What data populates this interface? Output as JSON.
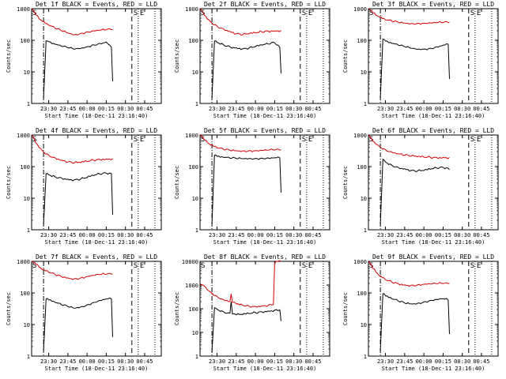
{
  "chart_data": [
    {
      "type": "line",
      "title": "Det 1f BLACK = Events, RED = LLD",
      "xlabel": "Start Time (18-Dec-11 23:16:40)",
      "ylabel": "Counts/sec",
      "ylim": [
        1,
        1000
      ],
      "yticks": [
        "1",
        "10",
        "100",
        "1000"
      ],
      "xticks": [
        "23:30",
        "23:45",
        "00:00",
        "00:15",
        "00:30",
        "00:45"
      ],
      "yscale": "log",
      "markers": {
        "S": "00:35",
        "E": "00:40"
      },
      "series": [
        {
          "color": "#d40000",
          "x": [
            "23:17",
            "23:20",
            "23:25",
            "23:30",
            "23:35",
            "23:40",
            "23:45",
            "23:50",
            "23:55",
            "00:00",
            "00:05",
            "00:10",
            "00:15",
            "00:20"
          ],
          "values": [
            1000,
            640,
            400,
            300,
            240,
            200,
            170,
            150,
            165,
            185,
            200,
            210,
            215,
            220
          ]
        },
        {
          "color": "#000000",
          "x": [
            "23:26",
            "23:28",
            "23:30",
            "23:35",
            "23:40",
            "23:45",
            "23:50",
            "23:55",
            "00:00",
            "00:05",
            "00:10",
            "00:15",
            "00:19",
            "00:20"
          ],
          "values": [
            1.5,
            95,
            90,
            75,
            65,
            58,
            52,
            55,
            62,
            72,
            80,
            88,
            60,
            5
          ]
        }
      ]
    },
    {
      "type": "line",
      "title": "Det 2f BLACK = Events, RED = LLD",
      "xlabel": "Start Time (18-Dec-11 23:16:40)",
      "ylabel": "Counts/sec",
      "ylim": [
        1,
        1000
      ],
      "yticks": [
        "1",
        "10",
        "100",
        "1000"
      ],
      "xticks": [
        "23:30",
        "23:45",
        "00:00",
        "00:15",
        "00:30",
        "00:45"
      ],
      "yscale": "log",
      "markers": {
        "S": "00:35",
        "E": "00:40"
      },
      "series": [
        {
          "color": "#d40000",
          "x": [
            "23:17",
            "23:20",
            "23:25",
            "23:30",
            "23:35",
            "23:40",
            "23:45",
            "23:50",
            "23:55",
            "00:00",
            "00:05",
            "00:10",
            "00:15",
            "00:20"
          ],
          "values": [
            1000,
            620,
            380,
            280,
            230,
            190,
            160,
            150,
            160,
            170,
            185,
            195,
            200,
            205
          ]
        },
        {
          "color": "#000000",
          "x": [
            "23:26",
            "23:28",
            "23:30",
            "23:35",
            "23:40",
            "23:45",
            "23:50",
            "23:55",
            "00:00",
            "00:05",
            "00:10",
            "00:15",
            "00:19",
            "00:20"
          ],
          "values": [
            1.5,
            95,
            85,
            72,
            63,
            58,
            54,
            57,
            63,
            70,
            76,
            84,
            60,
            9
          ]
        }
      ]
    },
    {
      "type": "line",
      "title": "Det 3f BLACK = Events, RED = LLD",
      "xlabel": "Start Time (18-Dec-11 23:16:40)",
      "ylabel": "Counts/sec",
      "ylim": [
        1,
        1000
      ],
      "yticks": [
        "1",
        "10",
        "100",
        "1000"
      ],
      "xticks": [
        "23:30",
        "23:45",
        "00:00",
        "00:15",
        "00:30",
        "00:45"
      ],
      "yscale": "log",
      "markers": {
        "S": "00:35",
        "E": "00:40"
      },
      "series": [
        {
          "color": "#d40000",
          "x": [
            "23:17",
            "23:20",
            "23:25",
            "23:30",
            "23:35",
            "23:40",
            "23:45",
            "23:50",
            "23:55",
            "00:00",
            "00:05",
            "00:10",
            "00:15",
            "00:20"
          ],
          "values": [
            1000,
            750,
            550,
            440,
            400,
            370,
            350,
            340,
            345,
            350,
            355,
            360,
            365,
            370
          ]
        },
        {
          "color": "#000000",
          "x": [
            "23:26",
            "23:28",
            "23:30",
            "23:35",
            "23:40",
            "23:45",
            "23:50",
            "23:55",
            "00:00",
            "00:05",
            "00:10",
            "00:15",
            "00:19",
            "00:20"
          ],
          "values": [
            1.5,
            110,
            95,
            80,
            70,
            62,
            56,
            52,
            53,
            56,
            62,
            70,
            75,
            6
          ]
        }
      ]
    },
    {
      "type": "line",
      "title": "Det 4f BLACK = Events, RED = LLD",
      "xlabel": "Start Time (18-Dec-11 23:16:40)",
      "ylabel": "Counts/sec",
      "ylim": [
        1,
        1000
      ],
      "yticks": [
        "1",
        "10",
        "100",
        "1000"
      ],
      "xticks": [
        "23:30",
        "23:45",
        "00:00",
        "00:15",
        "00:30",
        "00:45"
      ],
      "yscale": "log",
      "markers": {
        "S": "00:35",
        "E": "00:40"
      },
      "series": [
        {
          "color": "#d40000",
          "x": [
            "23:17",
            "23:20",
            "23:25",
            "23:30",
            "23:35",
            "23:40",
            "23:45",
            "23:50",
            "23:55",
            "00:00",
            "00:05",
            "00:10",
            "00:15",
            "00:20"
          ],
          "values": [
            1000,
            560,
            320,
            230,
            190,
            160,
            140,
            130,
            135,
            145,
            160,
            170,
            175,
            180
          ]
        },
        {
          "color": "#000000",
          "x": [
            "23:26",
            "23:28",
            "23:30",
            "23:35",
            "23:40",
            "23:45",
            "23:50",
            "23:55",
            "00:00",
            "00:05",
            "00:10",
            "00:15",
            "00:19",
            "00:20"
          ],
          "values": [
            1.5,
            60,
            55,
            48,
            44,
            40,
            38,
            40,
            45,
            52,
            58,
            62,
            60,
            3
          ]
        }
      ]
    },
    {
      "type": "line",
      "title": "Det 5f BLACK = Events, RED = LLD",
      "xlabel": "Start Time (18-Dec-11 23:16:40)",
      "ylabel": "Counts/sec",
      "ylim": [
        1,
        1000
      ],
      "yticks": [
        "1",
        "10",
        "100",
        "1000"
      ],
      "xticks": [
        "23:30",
        "23:45",
        "00:00",
        "00:15",
        "00:30",
        "00:45"
      ],
      "yscale": "log",
      "markers": {
        "S": "00:35",
        "E": "00:40"
      },
      "series": [
        {
          "color": "#d40000",
          "x": [
            "23:17",
            "23:20",
            "23:25",
            "23:30",
            "23:35",
            "23:40",
            "23:45",
            "23:50",
            "23:55",
            "00:00",
            "00:05",
            "00:10",
            "00:15",
            "00:20"
          ],
          "values": [
            1000,
            700,
            480,
            390,
            350,
            330,
            320,
            315,
            320,
            320,
            325,
            330,
            335,
            335
          ]
        },
        {
          "color": "#000000",
          "x": [
            "23:26",
            "23:28",
            "23:30",
            "23:35",
            "23:40",
            "23:45",
            "23:50",
            "23:55",
            "00:00",
            "00:05",
            "00:10",
            "00:15",
            "00:19",
            "00:20"
          ],
          "values": [
            1.5,
            230,
            210,
            195,
            185,
            180,
            178,
            180,
            182,
            185,
            188,
            190,
            190,
            15
          ]
        }
      ]
    },
    {
      "type": "line",
      "title": "Det 6f BLACK = Events, RED = LLD",
      "xlabel": "Start Time (18-Dec-11 23:16:40)",
      "ylabel": "Counts/sec",
      "ylim": [
        1,
        1000
      ],
      "yticks": [
        "1",
        "10",
        "100",
        "1000"
      ],
      "xticks": [
        "23:30",
        "23:45",
        "00:00",
        "00:15",
        "00:30",
        "00:45"
      ],
      "yscale": "log",
      "markers": {
        "S": "00:35",
        "E": "00:40"
      },
      "series": [
        {
          "color": "#d40000",
          "x": [
            "23:17",
            "23:20",
            "23:25",
            "23:30",
            "23:35",
            "23:40",
            "23:45",
            "23:50",
            "23:55",
            "00:00",
            "00:05",
            "00:10",
            "00:15",
            "00:20"
          ],
          "values": [
            1000,
            650,
            450,
            340,
            290,
            255,
            230,
            215,
            205,
            200,
            198,
            195,
            195,
            195
          ]
        },
        {
          "color": "#000000",
          "x": [
            "23:26",
            "23:28",
            "23:30",
            "23:35",
            "23:40",
            "23:45",
            "23:50",
            "23:55",
            "00:00",
            "00:05",
            "00:10",
            "00:15",
            "00:19",
            "00:20"
          ],
          "values": [
            1.5,
            170,
            140,
            110,
            95,
            85,
            75,
            72,
            75,
            82,
            90,
            95,
            88,
            80
          ]
        }
      ]
    },
    {
      "type": "line",
      "title": "Det 7f BLACK = Events, RED = LLD",
      "xlabel": "Start Time (18-Dec-11 23:16:40)",
      "ylabel": "Counts/sec",
      "ylim": [
        1,
        1000
      ],
      "yticks": [
        "1",
        "10",
        "100",
        "1000"
      ],
      "xticks": [
        "23:30",
        "23:45",
        "00:00",
        "00:15",
        "00:30",
        "00:45"
      ],
      "yscale": "log",
      "markers": {
        "S": "00:35",
        "E": "00:40"
      },
      "series": [
        {
          "color": "#d40000",
          "x": [
            "23:17",
            "23:20",
            "23:25",
            "23:30",
            "23:35",
            "23:40",
            "23:45",
            "23:50",
            "23:55",
            "00:00",
            "00:05",
            "00:10",
            "00:15",
            "00:20"
          ],
          "values": [
            1000,
            800,
            550,
            450,
            380,
            330,
            300,
            280,
            300,
            330,
            360,
            380,
            390,
            395
          ]
        },
        {
          "color": "#000000",
          "x": [
            "23:26",
            "23:28",
            "23:30",
            "23:35",
            "23:40",
            "23:45",
            "23:50",
            "23:55",
            "00:00",
            "00:05",
            "00:10",
            "00:15",
            "00:19",
            "00:20"
          ],
          "values": [
            1.5,
            65,
            60,
            50,
            42,
            37,
            33,
            36,
            42,
            50,
            58,
            64,
            65,
            4
          ]
        }
      ]
    },
    {
      "type": "line",
      "title": "Det 8f BLACK = Events, RED = LLD",
      "xlabel": "Start Time (18-Dec-11 23:16:40)",
      "ylabel": "Counts/sec",
      "ylim": [
        1,
        10000
      ],
      "yticks": [
        "1",
        "10",
        "100",
        "1000",
        "10000"
      ],
      "xticks": [
        "23:30",
        "23:45",
        "00:00",
        "00:15",
        "00:30",
        "00:45"
      ],
      "yscale": "log",
      "markers": {
        "S": "00:35",
        "E": "00:40"
      },
      "series": [
        {
          "color": "#d40000",
          "x": [
            "23:17",
            "23:20",
            "23:25",
            "23:30",
            "23:35",
            "23:40",
            "23:41",
            "23:42",
            "23:45",
            "23:50",
            "23:55",
            "00:00",
            "00:05",
            "00:10",
            "00:14",
            "00:15",
            "00:16",
            "00:20"
          ],
          "values": [
            1100,
            900,
            500,
            330,
            240,
            200,
            420,
            185,
            160,
            140,
            130,
            125,
            135,
            140,
            150,
            8000,
            10000,
            10000
          ]
        },
        {
          "color": "#000000",
          "x": [
            "23:26",
            "23:28",
            "23:30",
            "23:35",
            "23:40",
            "23:41",
            "23:42",
            "23:45",
            "23:50",
            "23:55",
            "00:00",
            "00:05",
            "00:10",
            "00:15",
            "00:19",
            "00:20"
          ],
          "values": [
            1.5,
            110,
            95,
            75,
            65,
            200,
            60,
            55,
            57,
            62,
            68,
            74,
            80,
            88,
            90,
            30
          ]
        }
      ]
    },
    {
      "type": "line",
      "title": "Det 9f BLACK = Events, RED = LLD",
      "xlabel": "Start Time (18-Dec-11 23:16:40)",
      "ylabel": "Counts/sec",
      "ylim": [
        1,
        1000
      ],
      "yticks": [
        "1",
        "10",
        "100",
        "1000"
      ],
      "xticks": [
        "23:30",
        "23:45",
        "00:00",
        "00:15",
        "00:30",
        "00:45"
      ],
      "yscale": "log",
      "markers": {
        "S": "00:35",
        "E": "00:40"
      },
      "series": [
        {
          "color": "#d40000",
          "x": [
            "23:17",
            "23:20",
            "23:25",
            "23:30",
            "23:35",
            "23:40",
            "23:45",
            "23:50",
            "23:55",
            "00:00",
            "00:05",
            "00:10",
            "00:15",
            "00:20"
          ],
          "values": [
            1000,
            600,
            350,
            260,
            220,
            195,
            180,
            175,
            180,
            188,
            192,
            195,
            198,
            200
          ]
        },
        {
          "color": "#000000",
          "x": [
            "23:26",
            "23:28",
            "23:30",
            "23:35",
            "23:40",
            "23:45",
            "23:50",
            "23:55",
            "00:00",
            "00:05",
            "00:10",
            "00:15",
            "00:19",
            "00:20"
          ],
          "values": [
            1.5,
            95,
            80,
            65,
            55,
            48,
            45,
            47,
            52,
            58,
            62,
            65,
            60,
            5
          ]
        }
      ]
    }
  ]
}
